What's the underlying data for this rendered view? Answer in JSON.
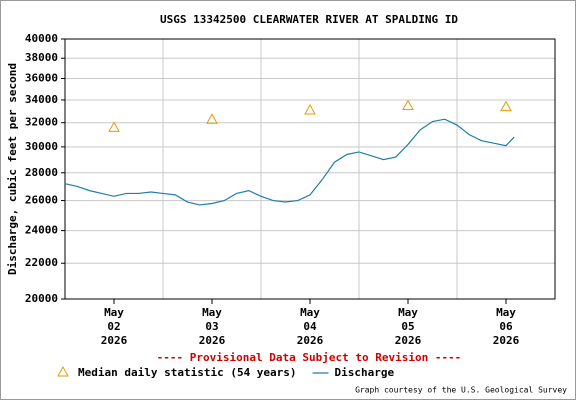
{
  "chart_data": {
    "type": "line",
    "title": "USGS 13342500 CLEARWATER RIVER AT SPALDING ID",
    "y_label": "Discharge, cubic feet per second",
    "footnote": "---- Provisional Data Subject to Revision ----",
    "credit": "Graph courtesy of the U.S. Geological Survey",
    "y_scale": "log",
    "grid": true,
    "ylim": [
      20000,
      40000
    ],
    "yticks": [
      20000,
      22000,
      24000,
      26000,
      28000,
      30000,
      32000,
      34000,
      36000,
      38000,
      40000
    ],
    "xlim": [
      "2026-05-01 12:00",
      "2026-05-06 12:00"
    ],
    "xticks": [
      {
        "value": "2026-05-02 00:00",
        "label": "May 02 2026"
      },
      {
        "value": "2026-05-03 00:00",
        "label": "May 03 2026"
      },
      {
        "value": "2026-05-04 00:00",
        "label": "May 04 2026"
      },
      {
        "value": "2026-05-05 00:00",
        "label": "May 05 2026"
      },
      {
        "value": "2026-05-06 00:00",
        "label": "May 06 2026"
      }
    ],
    "xgrid": [
      "2026-05-02 12:00",
      "2026-05-03 12:00",
      "2026-05-04 12:00",
      "2026-05-05 12:00"
    ],
    "series": [
      {
        "name": "Median daily statistic (54 years)",
        "color": "#e89a00",
        "marker": "triangle",
        "x": [
          "2026-05-02 00:00",
          "2026-05-03 00:00",
          "2026-05-04 00:00",
          "2026-05-05 00:00",
          "2026-05-06 00:00"
        ],
        "values": [
          31600,
          32300,
          33100,
          33500,
          33400
        ]
      },
      {
        "name": "Discharge",
        "color": "#1f7ea8",
        "marker": "line",
        "x": [
          "2026-05-01 12:00",
          "2026-05-01 15:00",
          "2026-05-01 18:00",
          "2026-05-01 21:00",
          "2026-05-02 00:00",
          "2026-05-02 03:00",
          "2026-05-02 06:00",
          "2026-05-02 09:00",
          "2026-05-02 12:00",
          "2026-05-02 15:00",
          "2026-05-02 18:00",
          "2026-05-02 21:00",
          "2026-05-03 00:00",
          "2026-05-03 03:00",
          "2026-05-03 06:00",
          "2026-05-03 09:00",
          "2026-05-03 12:00",
          "2026-05-03 15:00",
          "2026-05-03 18:00",
          "2026-05-03 21:00",
          "2026-05-04 00:00",
          "2026-05-04 03:00",
          "2026-05-04 06:00",
          "2026-05-04 09:00",
          "2026-05-04 12:00",
          "2026-05-04 15:00",
          "2026-05-04 18:00",
          "2026-05-04 21:00",
          "2026-05-05 00:00",
          "2026-05-05 03:00",
          "2026-05-05 06:00",
          "2026-05-05 09:00",
          "2026-05-05 12:00",
          "2026-05-05 15:00",
          "2026-05-05 18:00",
          "2026-05-05 21:00",
          "2026-05-06 00:00",
          "2026-05-06 02:00"
        ],
        "values": [
          27200,
          27000,
          26700,
          26500,
          26300,
          26500,
          26500,
          26600,
          26500,
          26400,
          25900,
          25700,
          25800,
          26000,
          26500,
          26700,
          26300,
          26000,
          25900,
          26000,
          26400,
          27500,
          28800,
          29400,
          29600,
          29300,
          29000,
          29200,
          30200,
          31400,
          32100,
          32300,
          31800,
          31000,
          30500,
          30300,
          30100,
          30800
        ]
      }
    ]
  }
}
